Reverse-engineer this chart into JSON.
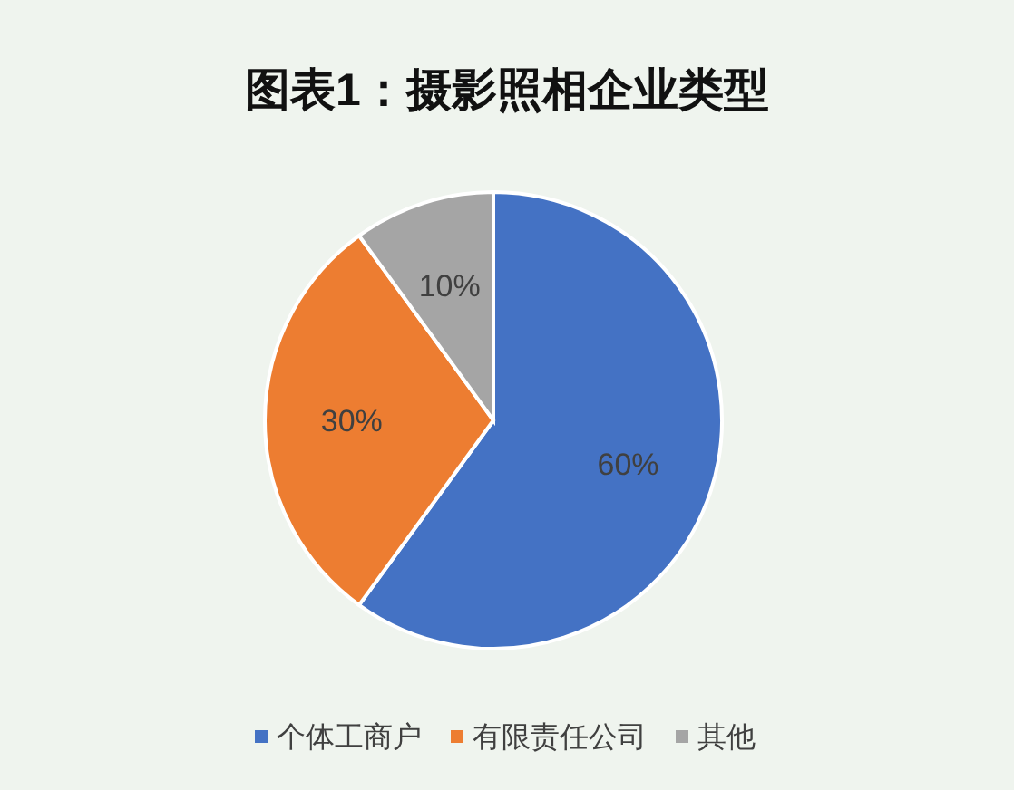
{
  "chart_data": {
    "type": "pie",
    "title": "图表1：摄影照相企业类型",
    "categories": [
      "个体工商户",
      "有限责任公司",
      "其他"
    ],
    "values": [
      60,
      30,
      10
    ],
    "colors": [
      "#4472c4",
      "#ed7d31",
      "#a5a5a5"
    ],
    "value_labels": [
      "60%",
      "30%",
      "10%"
    ],
    "legend": "bottom"
  }
}
